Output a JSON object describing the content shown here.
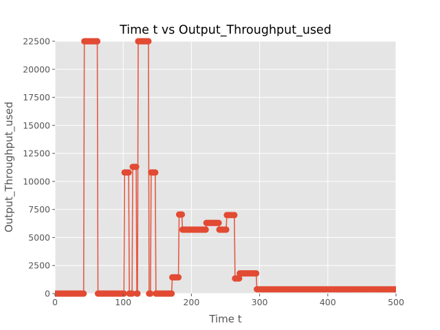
{
  "chart_data": {
    "type": "line",
    "title": "Time t vs Output_Throughput_used",
    "xlabel": "Time t",
    "ylabel": "Output_Throughput_used",
    "xlim": [
      0,
      500
    ],
    "ylim": [
      0,
      22500
    ],
    "xticks": [
      "0",
      "100",
      "200",
      "300",
      "400",
      "500"
    ],
    "yticks": [
      "0",
      "2500",
      "5000",
      "7500",
      "10000",
      "12500",
      "15000",
      "17500",
      "20000",
      "22500"
    ],
    "grid": true,
    "line_color": "#e24a33",
    "background_color": "#e5e5e5",
    "series": [
      {
        "x": [
          0,
          42,
          43,
          62,
          63,
          101,
          102,
          108,
          109,
          113,
          114,
          119,
          120,
          121,
          122,
          137,
          138,
          140,
          141,
          147,
          148,
          171,
          172,
          181,
          182,
          186,
          187,
          221,
          222,
          240,
          241,
          251,
          252,
          263,
          264,
          270,
          271,
          295,
          296,
          499
        ],
        "y": [
          0,
          0,
          22500,
          22500,
          0,
          0,
          10800,
          10800,
          0,
          0,
          11300,
          11300,
          0,
          0,
          22500,
          22500,
          0,
          0,
          10800,
          10800,
          0,
          0,
          1450,
          1450,
          7050,
          7050,
          5700,
          5700,
          6300,
          6300,
          5700,
          5700,
          7000,
          7000,
          1350,
          1350,
          1800,
          1800,
          380,
          380
        ]
      }
    ]
  }
}
